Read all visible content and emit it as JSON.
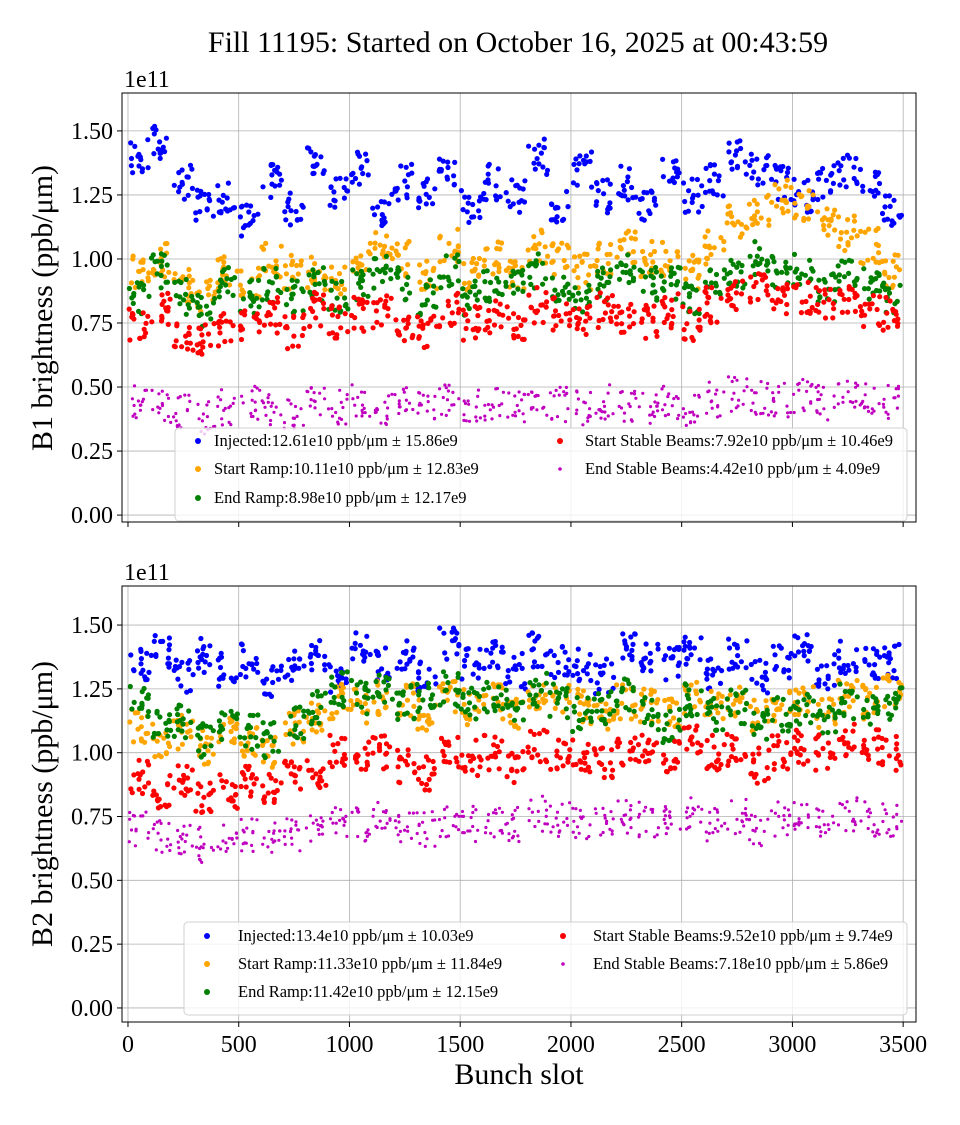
{
  "title": "Fill 11195: Started on October 16, 2025 at 00:43:59",
  "chart_data": [
    {
      "type": "scatter",
      "ylabel": "B1 brightness (ppb/μm)",
      "xlabel": "",
      "offset_text": "1e11",
      "xlim": [
        -27,
        3558
      ],
      "ylim": [
        -0.027,
        1.648
      ],
      "xticks": [
        0,
        500,
        1000,
        1500,
        2000,
        2500,
        3000,
        3500
      ],
      "xtick_labels_shown": false,
      "yticks": [
        0,
        0.25,
        0.5,
        0.75,
        1.0,
        1.25,
        1.5
      ],
      "ytick_labels": [
        "0.00",
        "0.25",
        "0.50",
        "0.75",
        "1.00",
        "1.25",
        "1.50"
      ],
      "grid": true,
      "legend_placement": "lower-right",
      "x": [
        50,
        150,
        250,
        350,
        450,
        550,
        650,
        750,
        850,
        950,
        1050,
        1150,
        1250,
        1350,
        1450,
        1550,
        1650,
        1750,
        1850,
        1950,
        2050,
        2150,
        2250,
        2350,
        2450,
        2550,
        2650,
        2750,
        2850,
        2950,
        3050,
        3150,
        3250,
        3350,
        3450
      ],
      "series": [
        {
          "name": "Injected:12.61e10 ppb/μm ± 15.86e9",
          "color": "#0000ff",
          "values": [
            1.4,
            1.45,
            1.3,
            1.2,
            1.25,
            1.15,
            1.3,
            1.2,
            1.4,
            1.25,
            1.35,
            1.2,
            1.3,
            1.25,
            1.35,
            1.2,
            1.3,
            1.25,
            1.4,
            1.2,
            1.35,
            1.25,
            1.3,
            1.2,
            1.35,
            1.25,
            1.3,
            1.4,
            1.35,
            1.3,
            1.25,
            1.3,
            1.35,
            1.3,
            1.2
          ]
        },
        {
          "name": "Start Ramp:10.11e10 ppb/μm ± 12.83e9",
          "color": "#ffa500",
          "values": [
            0.95,
            1.0,
            0.9,
            0.85,
            0.95,
            0.9,
            1.0,
            0.95,
            0.95,
            0.9,
            1.0,
            1.05,
            1.0,
            0.95,
            1.05,
            0.95,
            1.0,
            0.95,
            1.05,
            1.0,
            0.95,
            1.0,
            1.05,
            1.0,
            1.0,
            0.95,
            1.05,
            1.15,
            1.2,
            1.25,
            1.2,
            1.15,
            1.1,
            1.05,
            0.95
          ]
        },
        {
          "name": "End Ramp:8.98e10 ppb/μm ± 12.17e9",
          "color": "#008000",
          "values": [
            0.85,
            0.95,
            0.85,
            0.8,
            0.9,
            0.85,
            0.9,
            0.85,
            0.9,
            0.85,
            0.9,
            0.95,
            0.9,
            0.85,
            0.95,
            0.85,
            0.9,
            0.9,
            0.95,
            0.9,
            0.85,
            0.9,
            0.95,
            0.9,
            0.9,
            0.85,
            0.9,
            0.95,
            1.0,
            0.95,
            0.95,
            0.9,
            0.95,
            0.9,
            0.85
          ]
        },
        {
          "name": "Start Stable Beams:7.92e10 ppb/μm ± 10.46e9",
          "color": "#ff0000",
          "values": [
            0.75,
            0.8,
            0.7,
            0.68,
            0.72,
            0.75,
            0.78,
            0.72,
            0.8,
            0.75,
            0.78,
            0.8,
            0.75,
            0.72,
            0.8,
            0.75,
            0.78,
            0.75,
            0.82,
            0.78,
            0.75,
            0.8,
            0.78,
            0.75,
            0.8,
            0.75,
            0.82,
            0.85,
            0.88,
            0.85,
            0.85,
            0.82,
            0.85,
            0.8,
            0.78
          ]
        },
        {
          "name": "End Stable Beams:4.42e10 ppb/μm ± 4.09e9",
          "color": "#bf00bf",
          "values": [
            0.45,
            0.42,
            0.4,
            0.38,
            0.42,
            0.44,
            0.42,
            0.4,
            0.45,
            0.42,
            0.44,
            0.42,
            0.43,
            0.42,
            0.45,
            0.42,
            0.44,
            0.42,
            0.45,
            0.43,
            0.42,
            0.44,
            0.43,
            0.42,
            0.44,
            0.42,
            0.45,
            0.47,
            0.46,
            0.45,
            0.46,
            0.44,
            0.46,
            0.45,
            0.44
          ]
        }
      ]
    },
    {
      "type": "scatter",
      "ylabel": "B2 brightness (ppb/μm)",
      "xlabel": "Bunch slot",
      "offset_text": "1e11",
      "xlim": [
        -27,
        3558
      ],
      "ylim": [
        -0.055,
        1.653
      ],
      "xticks": [
        0,
        500,
        1000,
        1500,
        2000,
        2500,
        3000,
        3500
      ],
      "xtick_labels": [
        "0",
        "500",
        "1000",
        "1500",
        "2000",
        "2500",
        "3000",
        "3500"
      ],
      "yticks": [
        0,
        0.25,
        0.5,
        0.75,
        1.0,
        1.25,
        1.5
      ],
      "ytick_labels": [
        "0.00",
        "0.25",
        "0.50",
        "0.75",
        "1.00",
        "1.25",
        "1.50"
      ],
      "grid": true,
      "legend_placement": "lower-right",
      "x": [
        50,
        150,
        250,
        350,
        450,
        550,
        650,
        750,
        850,
        950,
        1050,
        1150,
        1250,
        1350,
        1450,
        1550,
        1650,
        1750,
        1850,
        1950,
        2050,
        2150,
        2250,
        2350,
        2450,
        2550,
        2650,
        2750,
        2850,
        2950,
        3050,
        3150,
        3250,
        3350,
        3450
      ],
      "series": [
        {
          "name": "Injected:13.4e10 ppb/μm ± 10.03e9",
          "color": "#0000ff",
          "values": [
            1.35,
            1.4,
            1.3,
            1.38,
            1.32,
            1.36,
            1.28,
            1.35,
            1.38,
            1.3,
            1.4,
            1.35,
            1.38,
            1.3,
            1.42,
            1.35,
            1.38,
            1.32,
            1.4,
            1.36,
            1.35,
            1.3,
            1.42,
            1.38,
            1.35,
            1.4,
            1.32,
            1.38,
            1.3,
            1.35,
            1.4,
            1.32,
            1.38,
            1.35,
            1.36
          ]
        },
        {
          "name": "Start Ramp:11.33e10 ppb/μm ± 11.84e9",
          "color": "#ffa500",
          "values": [
            1.1,
            1.05,
            1.08,
            1.02,
            1.1,
            1.05,
            1.0,
            1.1,
            1.15,
            1.2,
            1.18,
            1.22,
            1.2,
            1.15,
            1.22,
            1.18,
            1.2,
            1.15,
            1.22,
            1.2,
            1.18,
            1.15,
            1.2,
            1.18,
            1.15,
            1.22,
            1.18,
            1.2,
            1.15,
            1.18,
            1.2,
            1.15,
            1.22,
            1.2,
            1.25
          ]
        },
        {
          "name": "End Ramp:11.42e10 ppb/μm ± 12.15e9",
          "color": "#008000",
          "values": [
            1.2,
            1.1,
            1.12,
            1.05,
            1.1,
            1.08,
            1.05,
            1.12,
            1.18,
            1.25,
            1.22,
            1.25,
            1.2,
            1.22,
            1.25,
            1.2,
            1.22,
            1.18,
            1.25,
            1.2,
            1.15,
            1.18,
            1.22,
            1.15,
            1.1,
            1.2,
            1.15,
            1.18,
            1.1,
            1.15,
            1.18,
            1.12,
            1.2,
            1.18,
            1.2
          ]
        },
        {
          "name": "Start Stable Beams:9.52e10 ppb/μm ± 9.74e9",
          "color": "#ff0000",
          "values": [
            0.9,
            0.85,
            0.88,
            0.82,
            0.85,
            0.88,
            0.85,
            0.9,
            0.92,
            1.0,
            0.98,
            1.0,
            0.95,
            0.92,
            1.0,
            0.98,
            1.0,
            0.95,
            1.02,
            1.0,
            0.98,
            0.95,
            1.02,
            1.0,
            0.98,
            1.05,
            1.0,
            1.02,
            0.95,
            1.0,
            1.02,
            1.0,
            1.05,
            1.02,
            1.0
          ]
        },
        {
          "name": "End Stable Beams:7.18e10 ppb/μm ± 5.86e9",
          "color": "#bf00bf",
          "values": [
            0.7,
            0.68,
            0.66,
            0.64,
            0.66,
            0.68,
            0.66,
            0.68,
            0.7,
            0.74,
            0.72,
            0.74,
            0.72,
            0.7,
            0.74,
            0.72,
            0.74,
            0.72,
            0.76,
            0.74,
            0.72,
            0.72,
            0.75,
            0.74,
            0.72,
            0.76,
            0.72,
            0.75,
            0.7,
            0.74,
            0.76,
            0.74,
            0.76,
            0.74,
            0.74
          ]
        }
      ]
    }
  ]
}
